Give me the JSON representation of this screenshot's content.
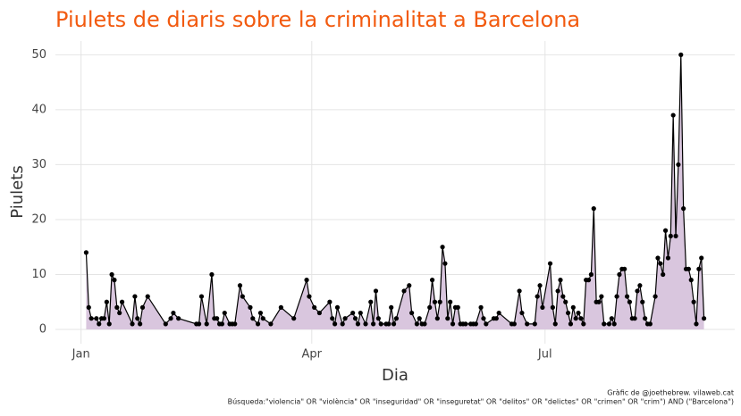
{
  "chart_data": {
    "type": "line",
    "title": "Piulets de diaris sobre la criminalitat a Barcelona",
    "x_label": "Dia",
    "y_label": "Piulets",
    "caption": [
      "Gràfic de @joethebrew. vilaweb.cat",
      "Búsqueda:\"violencia\" OR \"violència\" OR \"inseguridad\" OR \"inseguretat\" OR \"delitos\" OR \"delictes\" OR \"crimen\" OR \"crim\") AND (\"Barcelona\")"
    ],
    "x": [
      2,
      3,
      4,
      6,
      7,
      8,
      9,
      10,
      11,
      12,
      13,
      14,
      15,
      16,
      20,
      21,
      22,
      23,
      24,
      26,
      33,
      35,
      36,
      38,
      45,
      46,
      47,
      49,
      51,
      52,
      53,
      54,
      55,
      56,
      58,
      59,
      60,
      62,
      63,
      66,
      67,
      69,
      70,
      71,
      74,
      78,
      83,
      88,
      89,
      91,
      93,
      97,
      98,
      99,
      100,
      102,
      103,
      106,
      107,
      108,
      109,
      111,
      113,
      114,
      115,
      116,
      117,
      119,
      120,
      121,
      122,
      123,
      126,
      128,
      129,
      131,
      132,
      133,
      134,
      136,
      137,
      138,
      139,
      140,
      141,
      142,
      143,
      144,
      145,
      146,
      147,
      148,
      149,
      150,
      152,
      153,
      154,
      156,
      157,
      158,
      161,
      162,
      163,
      168,
      169,
      171,
      172,
      174,
      177,
      178,
      179,
      180,
      183,
      184,
      185,
      186,
      187,
      188,
      189,
      190,
      191,
      192,
      193,
      194,
      195,
      196,
      197,
      198,
      199,
      200,
      201,
      202,
      203,
      204,
      206,
      207,
      208,
      209,
      210,
      211,
      212,
      213,
      214,
      215,
      216,
      217,
      218,
      219,
      220,
      221,
      222,
      224,
      225,
      226,
      227,
      228,
      229,
      230,
      231,
      232,
      233,
      234,
      235,
      236,
      237,
      238,
      239,
      240,
      241,
      242,
      243
    ],
    "values": [
      14,
      4,
      2,
      2,
      1,
      2,
      2,
      5,
      1,
      10,
      9,
      4,
      3,
      5,
      1,
      6,
      2,
      1,
      4,
      6,
      1,
      2,
      3,
      2,
      1,
      1,
      6,
      1,
      10,
      2,
      2,
      1,
      1,
      3,
      1,
      1,
      1,
      8,
      6,
      4,
      2,
      1,
      3,
      2,
      1,
      4,
      2,
      9,
      6,
      4,
      3,
      5,
      2,
      1,
      4,
      1,
      2,
      3,
      2,
      1,
      3,
      1,
      5,
      1,
      7,
      2,
      1,
      1,
      1,
      4,
      1,
      2,
      7,
      8,
      3,
      1,
      2,
      1,
      1,
      4,
      9,
      5,
      2,
      5,
      15,
      12,
      2,
      5,
      1,
      4,
      4,
      1,
      1,
      1,
      1,
      1,
      1,
      4,
      2,
      1,
      2,
      2,
      3,
      1,
      1,
      7,
      3,
      1,
      1,
      6,
      8,
      4,
      12,
      4,
      1,
      7,
      9,
      6,
      5,
      3,
      1,
      4,
      2,
      3,
      2,
      1,
      9,
      9,
      10,
      22,
      5,
      5,
      6,
      1,
      1,
      2,
      1,
      6,
      10,
      11,
      11,
      6,
      5,
      2,
      2,
      7,
      8,
      5,
      2,
      1,
      1,
      6,
      13,
      12,
      10,
      18,
      13,
      17,
      39,
      17,
      30,
      50,
      22,
      11,
      11,
      9,
      5,
      1,
      11,
      13,
      2
    ],
    "color": "#000000",
    "area_color": "#d9c6de",
    "xlim": [
      -10,
      255
    ],
    "xticks": [
      {
        "value": 0,
        "label": "Jan"
      },
      {
        "value": 90,
        "label": "Apr"
      },
      {
        "value": 181,
        "label": "Jul"
      }
    ],
    "ylim": [
      -2.6,
      52.5
    ],
    "yticks": [
      0,
      10,
      20,
      30,
      40,
      50
    ],
    "grid": true
  }
}
